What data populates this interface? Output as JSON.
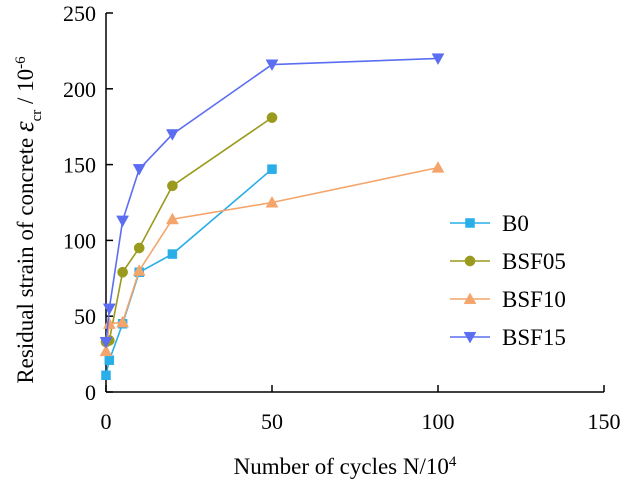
{
  "chart_data": {
    "type": "line",
    "title": "",
    "xlabel": "Number of cycles  N/10",
    "xlabel_sup": "4",
    "ylabel": "Residual strain of concrete ",
    "ylabel_symbol": "ε",
    "ylabel_sub": "cr",
    "ylabel_unit": " / 10",
    "ylabel_sup": "-6",
    "xlim": [
      0,
      150
    ],
    "ylim": [
      0,
      250
    ],
    "xticks": [
      0,
      50,
      100,
      150
    ],
    "yticks": [
      0,
      50,
      100,
      150,
      200,
      250
    ],
    "grid": false,
    "legend_position": "right-middle",
    "series": [
      {
        "name": "B0",
        "color": "#29aee8",
        "marker": "square",
        "x": [
          0,
          1,
          5,
          10,
          20,
          50
        ],
        "y": [
          11,
          21,
          45,
          79,
          91,
          147
        ]
      },
      {
        "name": "BSF05",
        "color": "#9a9a1f",
        "marker": "circle",
        "x": [
          0,
          1,
          5,
          10,
          20,
          50
        ],
        "y": [
          33,
          34,
          79,
          95,
          136,
          181
        ]
      },
      {
        "name": "BSF10",
        "color": "#f4a56b",
        "marker": "triangle-up",
        "x": [
          0,
          1,
          5,
          10,
          20,
          50,
          100
        ],
        "y": [
          27,
          45,
          46,
          80,
          114,
          125,
          148
        ]
      },
      {
        "name": "BSF15",
        "color": "#5b6ef2",
        "marker": "triangle-down",
        "x": [
          0,
          1,
          5,
          10,
          20,
          50,
          100
        ],
        "y": [
          33,
          55,
          113,
          147,
          170,
          216,
          220
        ]
      }
    ]
  }
}
